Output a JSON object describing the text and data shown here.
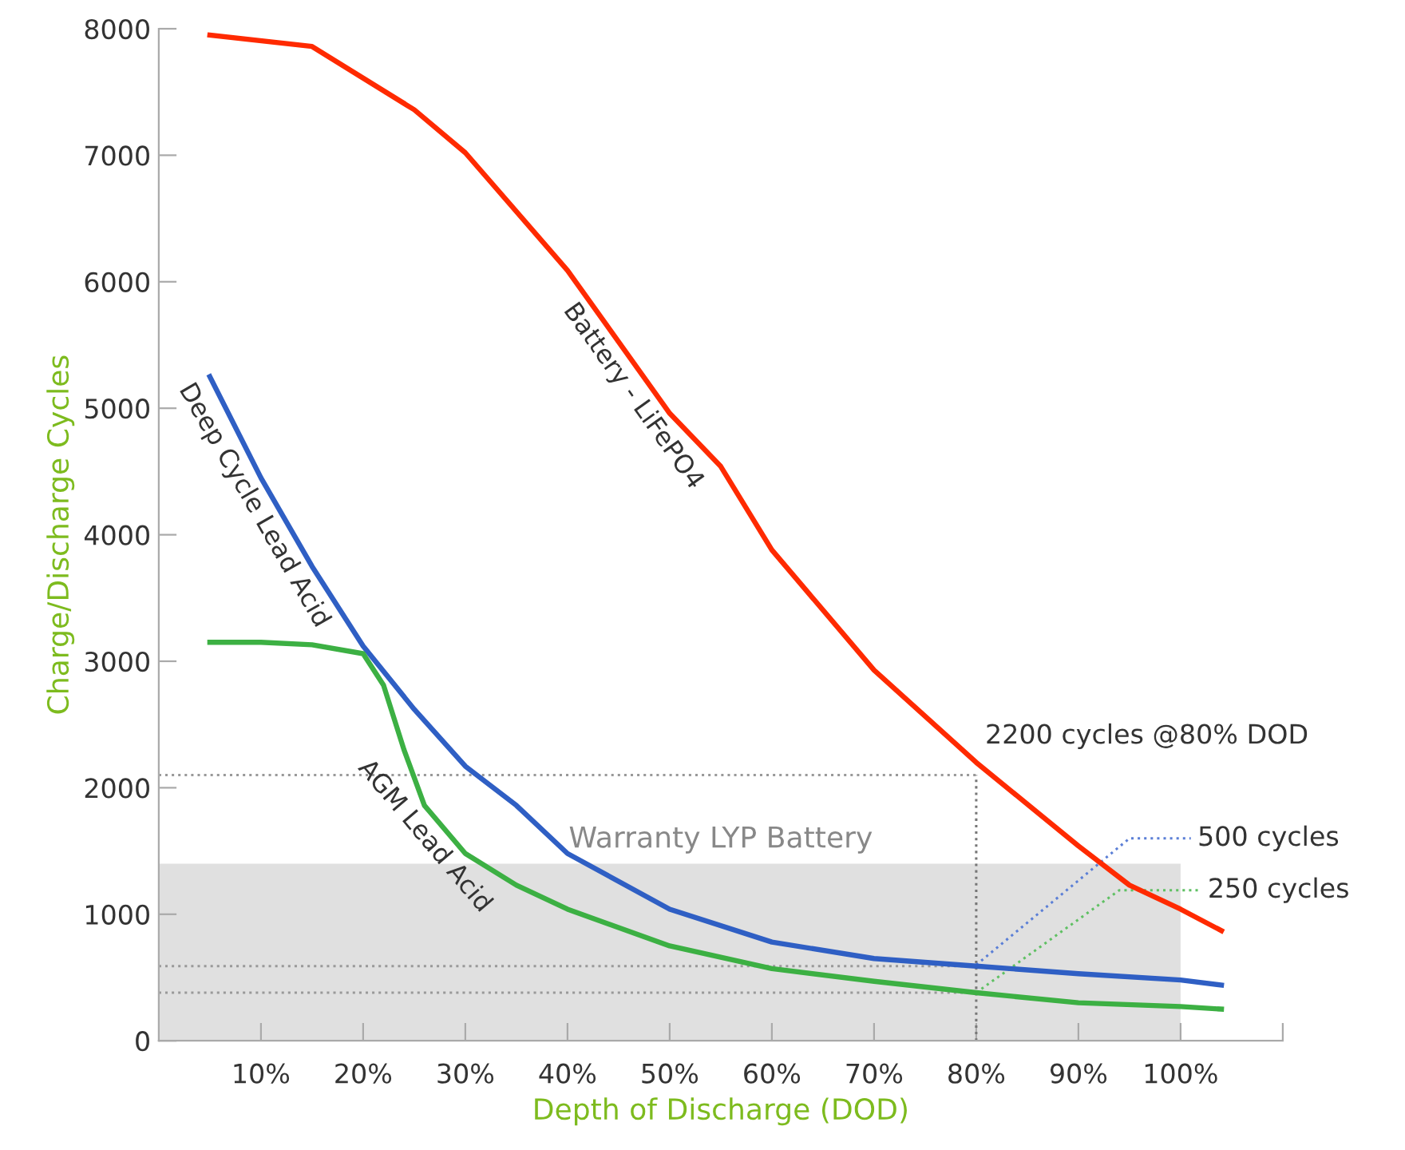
{
  "chart_data": {
    "type": "line",
    "xlabel": "Depth of Discharge (DOD)",
    "ylabel": "Charge/Discharge Cycles",
    "xlim": [
      0,
      110
    ],
    "ylim": [
      0,
      8000
    ],
    "xticks": [
      {
        "value": 10,
        "label": "10%"
      },
      {
        "value": 20,
        "label": "20%"
      },
      {
        "value": 30,
        "label": "30%"
      },
      {
        "value": 40,
        "label": "40%"
      },
      {
        "value": 50,
        "label": "50%"
      },
      {
        "value": 60,
        "label": "60%"
      },
      {
        "value": 70,
        "label": "70%"
      },
      {
        "value": 80,
        "label": "80%"
      },
      {
        "value": 90,
        "label": "90%"
      },
      {
        "value": 100,
        "label": "100%"
      },
      {
        "value": 110,
        "label": null
      }
    ],
    "yticks": [
      0,
      1000,
      2000,
      3000,
      4000,
      5000,
      6000,
      7000,
      8000
    ],
    "grid": false,
    "legend": false,
    "marker": "none",
    "series": [
      {
        "name": "Battery - LiFePO4",
        "color": "#ff2a00",
        "x": [
          5,
          15,
          25,
          30,
          40,
          50,
          55,
          60,
          70,
          80,
          90,
          95,
          100,
          104
        ],
        "values": [
          7950,
          7860,
          7360,
          7020,
          6090,
          4960,
          4540,
          3880,
          2930,
          2200,
          1540,
          1230,
          1040,
          870
        ]
      },
      {
        "name": "Deep Cycle Lead Acid",
        "color": "#2f5fc4",
        "x": [
          5,
          10,
          15,
          20,
          25,
          30,
          35,
          40,
          50,
          60,
          70,
          80,
          90,
          100,
          104
        ],
        "values": [
          5250,
          4450,
          3750,
          3120,
          2620,
          2170,
          1860,
          1480,
          1040,
          780,
          650,
          590,
          530,
          480,
          440
        ]
      },
      {
        "name": "AGM Lead Acid",
        "color": "#3cb043",
        "x": [
          5,
          10,
          15,
          20,
          22,
          24,
          26,
          30,
          35,
          40,
          50,
          60,
          70,
          80,
          90,
          100,
          104
        ],
        "values": [
          3150,
          3150,
          3130,
          3060,
          2810,
          2300,
          1860,
          1480,
          1230,
          1040,
          750,
          570,
          470,
          380,
          300,
          270,
          250
        ]
      },
      {
        "color": "#999999",
        "line_style": "dotted",
        "x": [
          0,
          80
        ],
        "values": [
          2100,
          2100
        ]
      },
      {
        "color": "#999999",
        "line_style": "dotted",
        "x": [
          0,
          80
        ],
        "values": [
          590,
          590
        ]
      },
      {
        "color": "#999999",
        "line_style": "dotted",
        "x": [
          0,
          80
        ],
        "values": [
          380,
          380
        ]
      },
      {
        "color": "#777777",
        "line_style": "dotted",
        "x": [
          80,
          80
        ],
        "values": [
          0,
          2100
        ]
      },
      {
        "color": "#5b7fd6",
        "line_style": "dotted",
        "x": [
          80,
          95,
          101
        ],
        "values": [
          600,
          1600,
          1600
        ]
      },
      {
        "color": "#5fc063",
        "line_style": "dotted",
        "x": [
          80,
          94,
          102
        ],
        "values": [
          380,
          1190,
          1190
        ]
      }
    ],
    "bands": [
      {
        "axis": "y",
        "from": 0,
        "to": 1400,
        "label": "Warranty LYP Battery",
        "color": "#e0e0e0"
      }
    ],
    "annotations": [
      {
        "text": "2200 cycles @80% DOD",
        "x": 80,
        "y": 2200
      },
      {
        "text": "500 cycles",
        "x": 101,
        "y": 1600
      },
      {
        "text": "250 cycles",
        "x": 102,
        "y": 1190
      }
    ]
  }
}
